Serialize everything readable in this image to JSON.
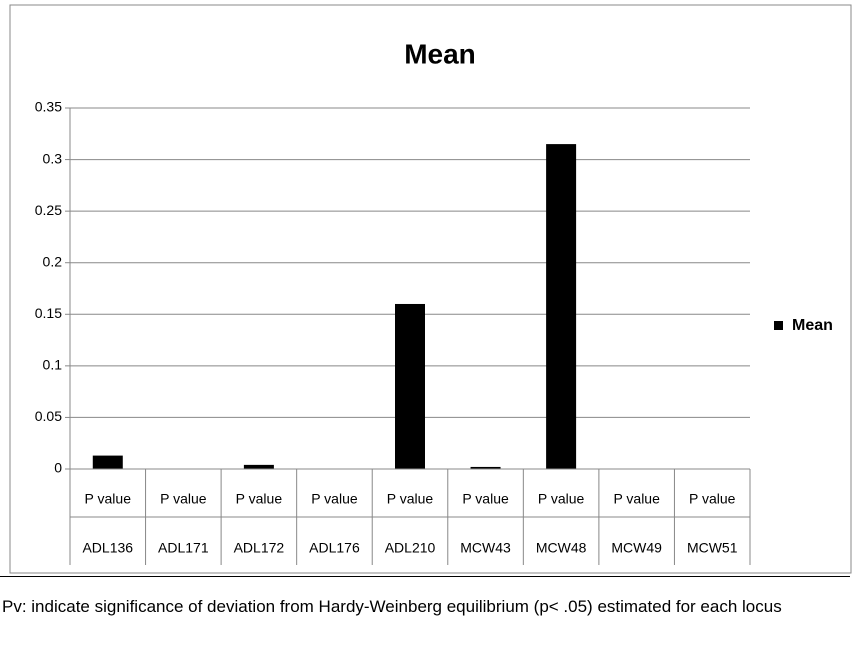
{
  "chart_data": {
    "type": "bar",
    "title": "Mean",
    "categories": [
      "P value",
      "P value",
      "P value",
      "P value",
      "P value",
      "P value",
      "P value",
      "P value",
      "P value"
    ],
    "category_groups": [
      "ADL136",
      "ADL171",
      "ADL172",
      "ADL176",
      "ADL210",
      "MCW43",
      "MCW48",
      "MCW49",
      "MCW51"
    ],
    "series": [
      {
        "name": "Mean",
        "color": "#000000",
        "values": [
          0.013,
          0,
          0.004,
          0,
          0.16,
          0.002,
          0.315,
          0,
          0
        ]
      }
    ],
    "ylim": [
      0,
      0.35
    ],
    "yticks": [
      0,
      0.05,
      0.1,
      0.15,
      0.2,
      0.25,
      0.3,
      0.35
    ],
    "grid": true,
    "legend": "right"
  },
  "footnote": "Pv: indicate significance of deviation from Hardy-Weinberg equilibrium (p< .05) estimated for each locus"
}
